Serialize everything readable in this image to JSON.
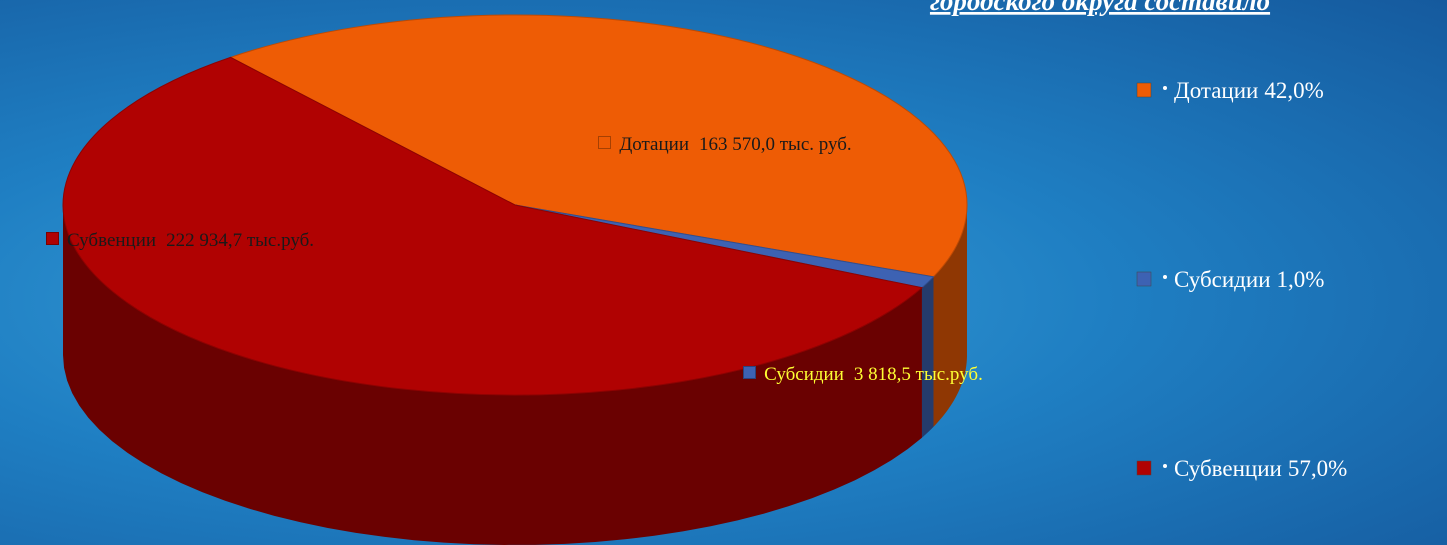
{
  "chart_data": {
    "type": "pie",
    "title": "городского округа составило",
    "categories": [
      "Дотации",
      "Субсидии",
      "Субвенции"
    ],
    "values": [
      42.0,
      1.0,
      57.0
    ],
    "value_labels": [
      "42,0%",
      "1,0%",
      "57,0%"
    ],
    "amount_labels": [
      "163 570,0 тыс. руб.",
      "3 818,5 тыс.руб.",
      "222 934,7 тыс.руб."
    ],
    "colors": [
      "#ee5c05",
      "#3d62b3",
      "#b00202"
    ],
    "legend": "right"
  }
}
